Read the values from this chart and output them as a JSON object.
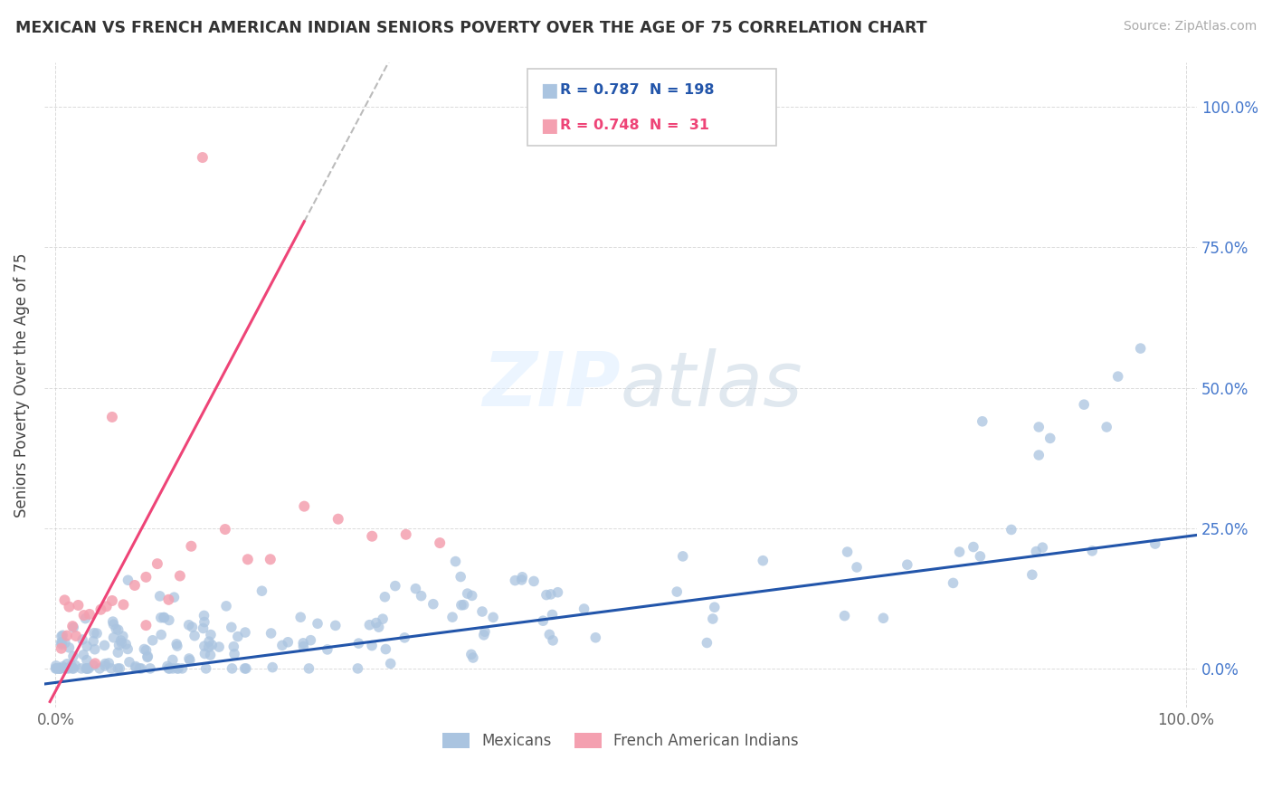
{
  "title": "MEXICAN VS FRENCH AMERICAN INDIAN SENIORS POVERTY OVER THE AGE OF 75 CORRELATION CHART",
  "source": "Source: ZipAtlas.com",
  "ylabel": "Seniors Poverty Over the Age of 75",
  "background_color": "#ffffff",
  "blue_color": "#aac4e0",
  "pink_color": "#f4a0b0",
  "blue_line_color": "#2255aa",
  "pink_line_color": "#ee4477",
  "blue_R": 0.787,
  "blue_N": 198,
  "pink_R": 0.748,
  "pink_N": 31,
  "blue_legend": "Mexicans",
  "pink_legend": "French American Indians",
  "xlim": [
    -0.01,
    1.01
  ],
  "ylim": [
    -0.07,
    1.08
  ],
  "right_tick_color": "#4477cc"
}
